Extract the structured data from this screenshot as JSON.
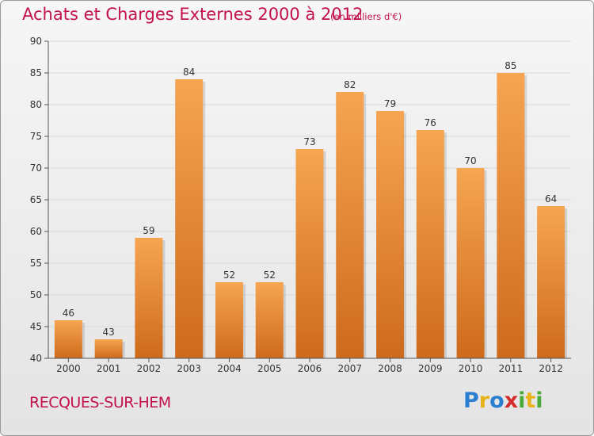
{
  "title": "Achats et Charges Externes 2000 à 2012",
  "subtitle": "(en milliers d'€)",
  "town": "RECQUES-SUR-HEM",
  "logo": {
    "letters": [
      "P",
      "r",
      "o",
      "x",
      "i",
      "t",
      "i"
    ],
    "colors": [
      "#2a7fd1",
      "#e8b31a",
      "#2a7fd1",
      "#d52c2c",
      "#4caa3a",
      "#e8b31a",
      "#4caa3a"
    ]
  },
  "colors": {
    "bar_top": "#f6a552",
    "bar_bottom": "#ce6a1c",
    "grid": "#d9d9d9",
    "axis": "#555555",
    "title": "#c3114f"
  },
  "chart_data": {
    "type": "bar",
    "categories": [
      "2000",
      "2001",
      "2002",
      "2003",
      "2004",
      "2005",
      "2006",
      "2007",
      "2008",
      "2009",
      "2010",
      "2011",
      "2012"
    ],
    "values": [
      46,
      43,
      59,
      84,
      52,
      52,
      73,
      82,
      79,
      76,
      70,
      85,
      64
    ],
    "ylim": [
      40,
      90
    ],
    "yticks": [
      40,
      45,
      50,
      55,
      60,
      65,
      70,
      75,
      80,
      85,
      90
    ],
    "grid": true,
    "title": "Achats et Charges Externes 2000 à 2012",
    "xlabel": "",
    "ylabel": ""
  }
}
